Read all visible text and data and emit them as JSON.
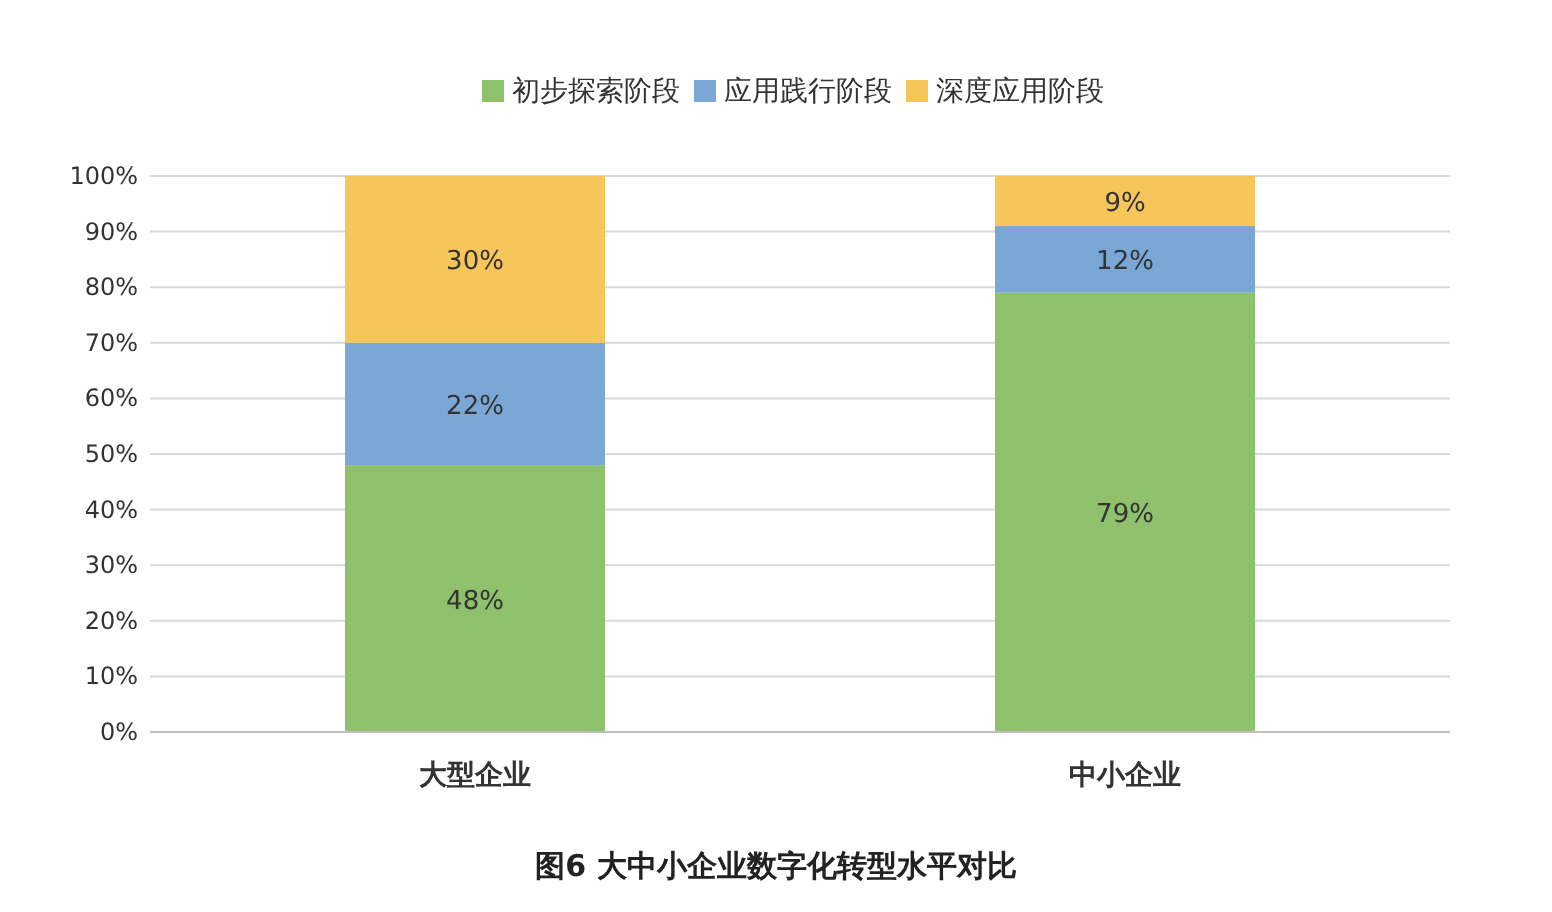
{
  "chart_data": {
    "type": "bar",
    "title": "图6 大中小企业数字化转型水平对比",
    "categories": [
      "大型企业",
      "中小企业"
    ],
    "stacked": true,
    "grid": "y",
    "legend": "top",
    "ylim": [
      0,
      100
    ],
    "yticks": [
      {
        "value": 0,
        "label": "0%"
      },
      {
        "value": 10,
        "label": "10%"
      },
      {
        "value": 20,
        "label": "20%"
      },
      {
        "value": 30,
        "label": "30%"
      },
      {
        "value": 40,
        "label": "40%"
      },
      {
        "value": 50,
        "label": "50%"
      },
      {
        "value": 60,
        "label": "60%"
      },
      {
        "value": 70,
        "label": "70%"
      },
      {
        "value": 80,
        "label": "80%"
      },
      {
        "value": 90,
        "label": "90%"
      },
      {
        "value": 100,
        "label": "100%"
      }
    ],
    "series": [
      {
        "name": "初步探索阶段",
        "color": "#8fc06b",
        "values": [
          48,
          79
        ],
        "value_labels": [
          "48%",
          "79%"
        ]
      },
      {
        "name": "应用践行阶段",
        "color": "#7ba7d7",
        "values": [
          22,
          12
        ],
        "value_labels": [
          "22%",
          "12%"
        ]
      },
      {
        "name": "深度应用阶段",
        "color": "#f6c65b",
        "values": [
          30,
          9
        ],
        "value_labels": [
          "30%",
          "9%"
        ]
      }
    ]
  }
}
